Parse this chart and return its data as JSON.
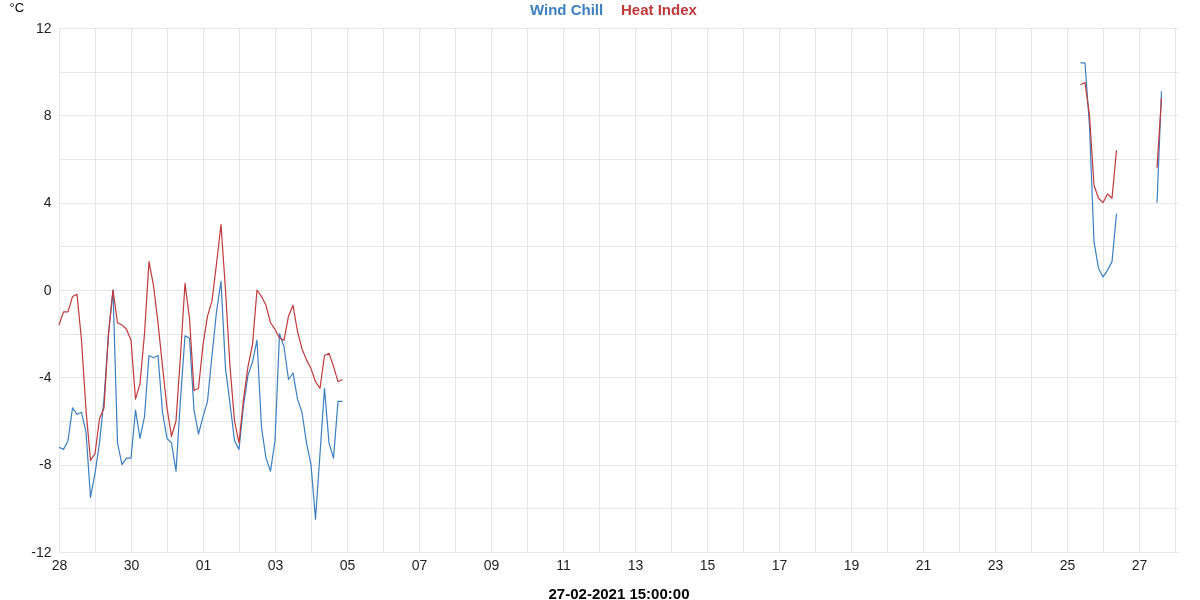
{
  "chart_data": {
    "type": "line",
    "xlabel": "27-02-2021 15:00:00",
    "ylabel": "°C",
    "legend": "top",
    "grid": true,
    "line_style": "solid",
    "marker": "none",
    "x": [
      "2021-01-28T00:00",
      "2021-01-28T03:00",
      "2021-01-28T06:00",
      "2021-01-28T09:00",
      "2021-01-28T12:00",
      "2021-01-28T15:00",
      "2021-01-28T18:00",
      "2021-01-28T21:00",
      "2021-01-29T00:00",
      "2021-01-29T03:00",
      "2021-01-29T06:00",
      "2021-01-29T09:00",
      "2021-01-29T12:00",
      "2021-01-29T15:00",
      "2021-01-29T18:00",
      "2021-01-29T21:00",
      "2021-01-30T00:00",
      "2021-01-30T03:00",
      "2021-01-30T06:00",
      "2021-01-30T09:00",
      "2021-01-30T12:00",
      "2021-01-30T15:00",
      "2021-01-30T18:00",
      "2021-01-30T21:00",
      "2021-01-31T00:00",
      "2021-01-31T03:00",
      "2021-01-31T06:00",
      "2021-01-31T09:00",
      "2021-01-31T12:00",
      "2021-01-31T15:00",
      "2021-01-31T18:00",
      "2021-01-31T21:00",
      "2021-02-01T00:00",
      "2021-02-01T03:00",
      "2021-02-01T06:00",
      "2021-02-01T09:00",
      "2021-02-01T12:00",
      "2021-02-01T15:00",
      "2021-02-01T18:00",
      "2021-02-01T21:00",
      "2021-02-02T00:00",
      "2021-02-02T03:00",
      "2021-02-02T06:00",
      "2021-02-02T09:00",
      "2021-02-02T12:00",
      "2021-02-02T15:00",
      "2021-02-02T18:00",
      "2021-02-02T21:00",
      "2021-02-03T00:00",
      "2021-02-03T03:00",
      "2021-02-03T06:00",
      "2021-02-03T09:00",
      "2021-02-03T12:00",
      "2021-02-03T15:00",
      "2021-02-03T18:00",
      "2021-02-03T21:00",
      "2021-02-04T00:00",
      "2021-02-04T03:00",
      "2021-02-04T06:00",
      "2021-02-04T09:00",
      "2021-02-04T12:00",
      "2021-02-04T15:00",
      "2021-02-04T18:00",
      "2021-02-04T21:00",
      "2021-02-05T12:00",
      "2021-02-25T09:00",
      "2021-02-25T12:00",
      "2021-02-25T15:00",
      "2021-02-25T18:00",
      "2021-02-25T21:00",
      "2021-02-26T00:00",
      "2021-02-26T03:00",
      "2021-02-26T06:00",
      "2021-02-26T09:00",
      "2021-02-26T12:00",
      "2021-02-27T12:00",
      "2021-02-27T15:00"
    ],
    "series": [
      {
        "name": "Wind Chill",
        "color": "#3b7fc0",
        "values": [
          -7.2,
          -7.3,
          -6.9,
          -5.4,
          -5.7,
          -5.6,
          -6.5,
          -9.5,
          -8.4,
          -7.0,
          -5.0,
          -2.0,
          0.0,
          -7.0,
          -8.0,
          -7.7,
          -7.7,
          -5.5,
          -6.8,
          -5.8,
          -3.0,
          -3.1,
          -3.0,
          -5.6,
          -6.8,
          -7.0,
          -8.3,
          -5.0,
          -2.1,
          -2.2,
          -5.5,
          -6.6,
          -5.8,
          -5.1,
          -3.0,
          -1.0,
          0.4,
          -3.6,
          -5.2,
          -6.9,
          -7.3,
          -5.3,
          -3.9,
          -3.3,
          -2.3,
          -6.3,
          -7.7,
          -8.3,
          -6.9,
          -2.0,
          -2.6,
          -4.1,
          -3.8,
          -5.0,
          -5.6,
          -7.0,
          -8.0,
          -10.5,
          -7.5,
          -4.5,
          -7.0,
          -7.7,
          -5.1,
          -5.1,
          null,
          10.4,
          10.4,
          7.5,
          2.2,
          1.0,
          0.6,
          0.9,
          1.3,
          3.5,
          null,
          4.0,
          9.1
        ]
      },
      {
        "name": "Heat Index",
        "color": "#c0393b",
        "values": [
          -1.6,
          -1.0,
          -1.0,
          -0.3,
          -0.2,
          -2.3,
          -5.5,
          -7.8,
          -7.5,
          -5.9,
          -5.4,
          -2.0,
          0.0,
          -1.5,
          -1.6,
          -1.8,
          -2.3,
          -5.0,
          -4.3,
          -2.0,
          1.3,
          0.2,
          -1.5,
          -3.5,
          -5.4,
          -6.7,
          -6.0,
          -3.0,
          0.3,
          -1.3,
          -4.6,
          -4.5,
          -2.5,
          -1.2,
          -0.5,
          1.2,
          3.0,
          0.0,
          -3.5,
          -6.0,
          -7.0,
          -5.0,
          -3.5,
          -2.5,
          0.0,
          -0.3,
          -0.7,
          -1.5,
          -1.8,
          -2.2,
          -2.3,
          -1.2,
          -0.7,
          -1.9,
          -2.7,
          -3.2,
          -3.6,
          -4.2,
          -4.5,
          -3.0,
          -2.9,
          -3.5,
          -4.2,
          -4.1,
          null,
          9.4,
          9.5,
          8.0,
          4.8,
          4.2,
          4.0,
          4.4,
          4.2,
          6.4,
          null,
          5.6,
          8.8
        ]
      }
    ],
    "xlim": [
      "2021-01-28T00:00",
      "2021-02-28T02:00"
    ],
    "xticks": [
      {
        "value": "2021-01-28T00:00",
        "label": "28"
      },
      {
        "value": "2021-01-29T00:00",
        "label": null
      },
      {
        "value": "2021-01-30T00:00",
        "label": "30"
      },
      {
        "value": "2021-01-31T00:00",
        "label": null
      },
      {
        "value": "2021-02-01T00:00",
        "label": "01"
      },
      {
        "value": "2021-02-02T00:00",
        "label": null
      },
      {
        "value": "2021-02-03T00:00",
        "label": "03"
      },
      {
        "value": "2021-02-04T00:00",
        "label": null
      },
      {
        "value": "2021-02-05T00:00",
        "label": "05"
      },
      {
        "value": "2021-02-06T00:00",
        "label": null
      },
      {
        "value": "2021-02-07T00:00",
        "label": "07"
      },
      {
        "value": "2021-02-08T00:00",
        "label": null
      },
      {
        "value": "2021-02-09T00:00",
        "label": "09"
      },
      {
        "value": "2021-02-10T00:00",
        "label": null
      },
      {
        "value": "2021-02-11T00:00",
        "label": "11"
      },
      {
        "value": "2021-02-12T00:00",
        "label": null
      },
      {
        "value": "2021-02-13T00:00",
        "label": "13"
      },
      {
        "value": "2021-02-14T00:00",
        "label": null
      },
      {
        "value": "2021-02-15T00:00",
        "label": "15"
      },
      {
        "value": "2021-02-16T00:00",
        "label": null
      },
      {
        "value": "2021-02-17T00:00",
        "label": "17"
      },
      {
        "value": "2021-02-18T00:00",
        "label": null
      },
      {
        "value": "2021-02-19T00:00",
        "label": "19"
      },
      {
        "value": "2021-02-20T00:00",
        "label": null
      },
      {
        "value": "2021-02-21T00:00",
        "label": "21"
      },
      {
        "value": "2021-02-22T00:00",
        "label": null
      },
      {
        "value": "2021-02-23T00:00",
        "label": "23"
      },
      {
        "value": "2021-02-24T00:00",
        "label": null
      },
      {
        "value": "2021-02-25T00:00",
        "label": "25"
      },
      {
        "value": "2021-02-26T00:00",
        "label": null
      },
      {
        "value": "2021-02-27T00:00",
        "label": "27"
      },
      {
        "value": "2021-02-28T00:00",
        "label": null
      }
    ],
    "ylim": [
      -12,
      12
    ],
    "yticks": [
      -12,
      {
        "value": -10,
        "label": null
      },
      -8,
      {
        "value": -6,
        "label": null
      },
      -4,
      {
        "value": -2,
        "label": null
      },
      0,
      {
        "value": 2,
        "label": null
      },
      4,
      {
        "value": 6,
        "label": null
      },
      8,
      {
        "value": 10,
        "label": null
      },
      12
    ]
  }
}
